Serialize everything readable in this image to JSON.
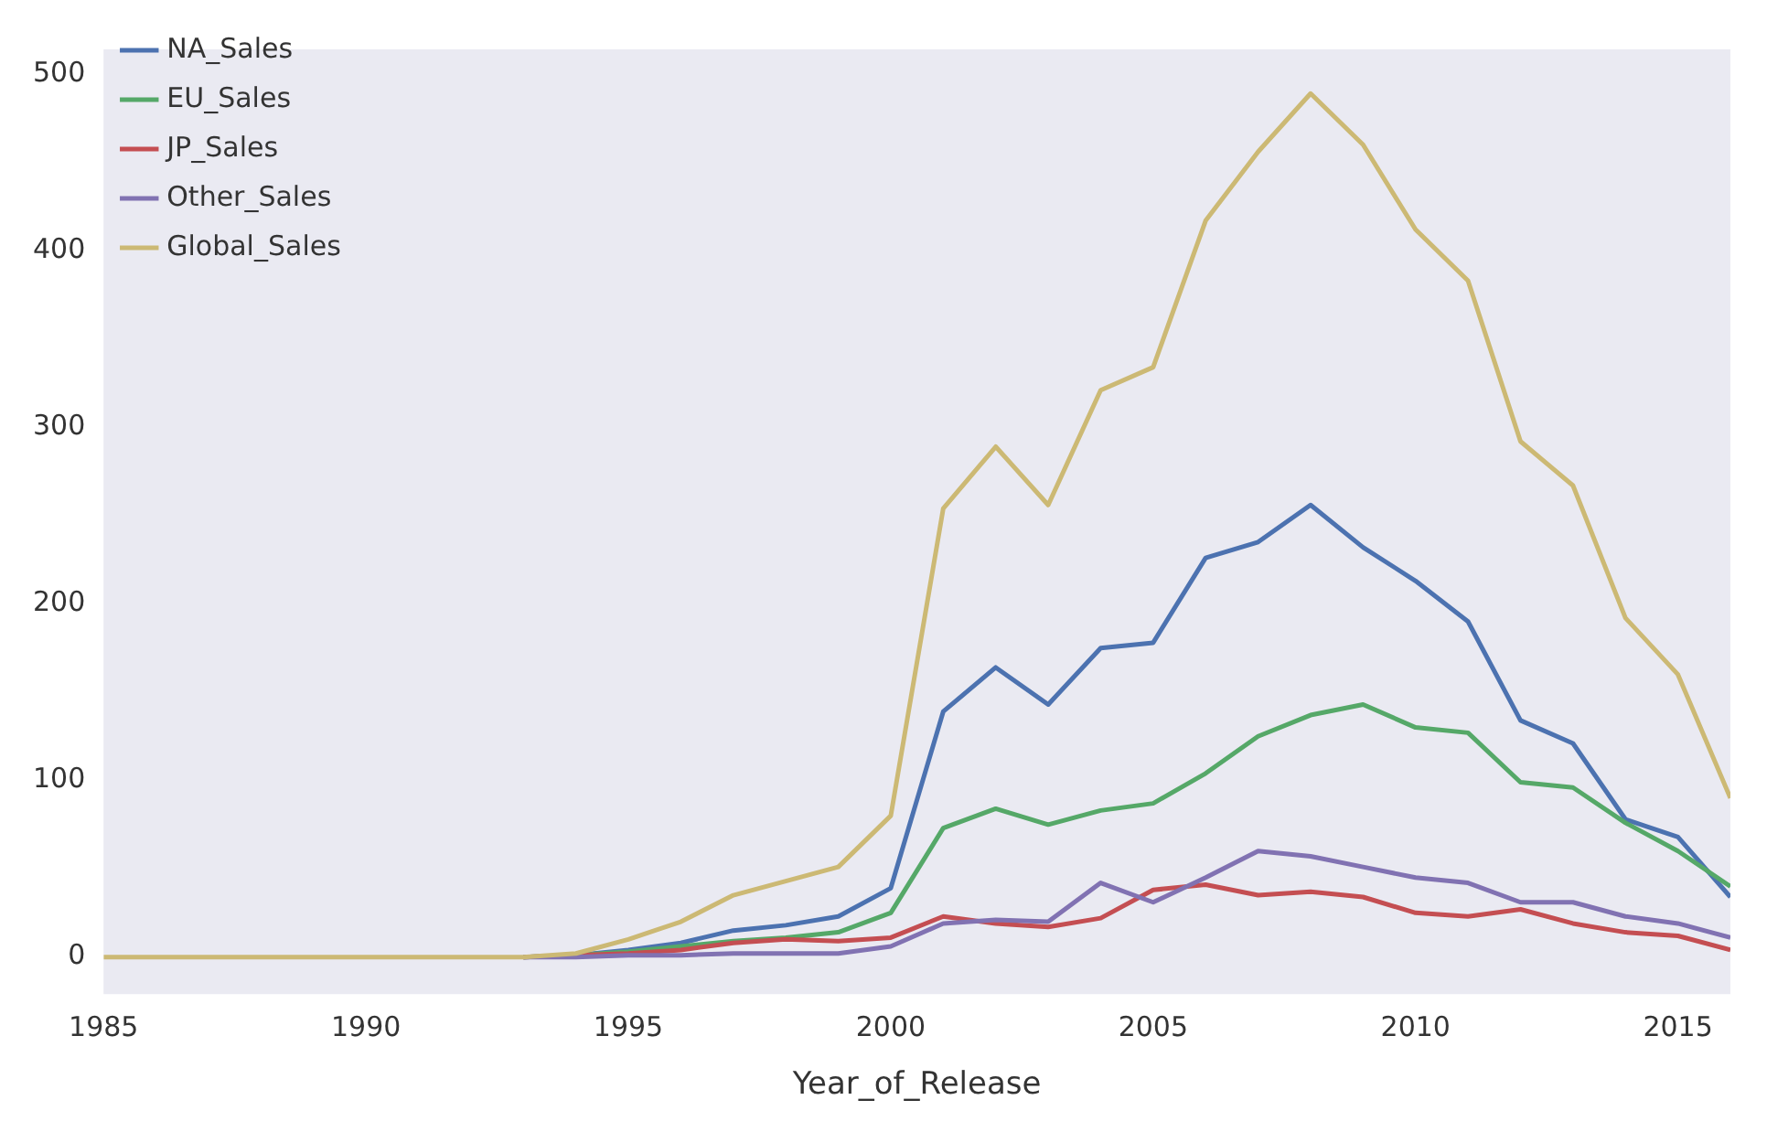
{
  "chart_data": {
    "type": "line",
    "xlabel": "Year_of_Release",
    "x": [
      1985,
      1986,
      1987,
      1988,
      1989,
      1990,
      1991,
      1992,
      1993,
      1994,
      1995,
      1996,
      1997,
      1998,
      1999,
      2000,
      2001,
      2002,
      2003,
      2004,
      2005,
      2006,
      2007,
      2008,
      2009,
      2010,
      2011,
      2012,
      2013,
      2014,
      2015,
      2016
    ],
    "series": [
      {
        "name": "NA_Sales",
        "color": "#4c72b0",
        "values": [
          null,
          null,
          null,
          null,
          null,
          null,
          null,
          null,
          0,
          1,
          4,
          8,
          15,
          18,
          23,
          39,
          139,
          164,
          143,
          175,
          178,
          226,
          235,
          256,
          232,
          213,
          190,
          134,
          121,
          78,
          68,
          34
        ]
      },
      {
        "name": "EU_Sales",
        "color": "#55a868",
        "values": [
          null,
          null,
          null,
          null,
          null,
          null,
          null,
          null,
          0,
          1,
          3,
          6,
          9,
          11,
          14,
          25,
          73,
          84,
          75,
          83,
          87,
          104,
          125,
          137,
          143,
          130,
          127,
          99,
          96,
          76,
          60,
          40
        ]
      },
      {
        "name": "JP_Sales",
        "color": "#c44e52",
        "values": [
          null,
          null,
          null,
          null,
          null,
          null,
          null,
          null,
          0,
          1,
          2,
          4,
          8,
          10,
          9,
          11,
          23,
          19,
          17,
          22,
          38,
          41,
          35,
          37,
          34,
          25,
          23,
          27,
          19,
          14,
          12,
          4
        ]
      },
      {
        "name": "Other_Sales",
        "color": "#8172b2",
        "values": [
          null,
          null,
          null,
          null,
          null,
          null,
          null,
          null,
          0,
          0,
          1,
          1,
          2,
          2,
          2,
          6,
          19,
          21,
          20,
          42,
          31,
          45,
          60,
          57,
          51,
          45,
          42,
          31,
          31,
          23,
          19,
          11
        ]
      },
      {
        "name": "Global_Sales",
        "color": "#ccb974",
        "values": [
          0,
          0,
          0,
          0,
          0,
          0,
          0,
          0,
          0,
          2,
          10,
          20,
          35,
          43,
          51,
          80,
          254,
          289,
          256,
          321,
          334,
          417,
          456,
          489,
          460,
          412,
          383,
          292,
          267,
          192,
          160,
          90
        ]
      }
    ],
    "xlim": [
      1985,
      2016
    ],
    "xticks": [
      1985,
      1990,
      1995,
      2000,
      2005,
      2010,
      2015
    ],
    "ylim": [
      -21,
      514
    ],
    "yticks": [
      0,
      100,
      200,
      300,
      400,
      500
    ],
    "grid": false,
    "legend": "top left",
    "marker": "none",
    "line_style": "solid"
  }
}
